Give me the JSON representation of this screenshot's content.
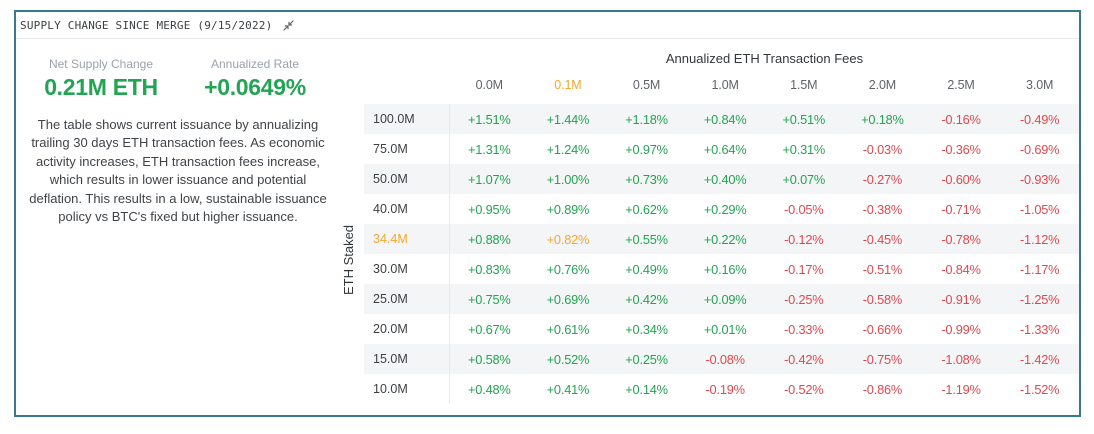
{
  "header": {
    "title": "SUPPLY CHANGE SINCE MERGE (9/15/2022)"
  },
  "stats": [
    {
      "label": "Net Supply Change",
      "value": "0.21M ETH"
    },
    {
      "label": "Annualized Rate",
      "value": "+0.0649%"
    }
  ],
  "description": "The table shows current issuance by annualizing trailing 30 days ETH transaction fees. As economic activity increases, ETH transaction fees increase, which results in lower issuance and potential deflation. This results in a low, sustainable issuance policy vs BTC's fixed but higher issuance.",
  "colors": {
    "positive": "#23a354",
    "negative": "#e0484f",
    "highlight": "#f2a72e",
    "card_border": "#37798e"
  },
  "table": {
    "title": "Annualized ETH Transaction Fees",
    "y_axis_label": "ETH Staked",
    "columns": [
      "0.0M",
      "0.1M",
      "0.5M",
      "1.0M",
      "1.5M",
      "2.0M",
      "2.5M",
      "3.0M"
    ],
    "highlight_column_index": 1,
    "highlight_row_index": 4,
    "rows": [
      {
        "staked": "100.0M",
        "values": [
          "+1.51%",
          "+1.44%",
          "+1.18%",
          "+0.84%",
          "+0.51%",
          "+0.18%",
          "-0.16%",
          "-0.49%"
        ]
      },
      {
        "staked": "75.0M",
        "values": [
          "+1.31%",
          "+1.24%",
          "+0.97%",
          "+0.64%",
          "+0.31%",
          "-0.03%",
          "-0.36%",
          "-0.69%"
        ]
      },
      {
        "staked": "50.0M",
        "values": [
          "+1.07%",
          "+1.00%",
          "+0.73%",
          "+0.40%",
          "+0.07%",
          "-0.27%",
          "-0.60%",
          "-0.93%"
        ]
      },
      {
        "staked": "40.0M",
        "values": [
          "+0.95%",
          "+0.89%",
          "+0.62%",
          "+0.29%",
          "-0.05%",
          "-0.38%",
          "-0.71%",
          "-1.05%"
        ]
      },
      {
        "staked": "34.4M",
        "values": [
          "+0.88%",
          "+0.82%",
          "+0.55%",
          "+0.22%",
          "-0.12%",
          "-0.45%",
          "-0.78%",
          "-1.12%"
        ]
      },
      {
        "staked": "30.0M",
        "values": [
          "+0.83%",
          "+0.76%",
          "+0.49%",
          "+0.16%",
          "-0.17%",
          "-0.51%",
          "-0.84%",
          "-1.17%"
        ]
      },
      {
        "staked": "25.0M",
        "values": [
          "+0.75%",
          "+0.69%",
          "+0.42%",
          "+0.09%",
          "-0.25%",
          "-0.58%",
          "-0.91%",
          "-1.25%"
        ]
      },
      {
        "staked": "20.0M",
        "values": [
          "+0.67%",
          "+0.61%",
          "+0.34%",
          "+0.01%",
          "-0.33%",
          "-0.66%",
          "-0.99%",
          "-1.33%"
        ]
      },
      {
        "staked": "15.0M",
        "values": [
          "+0.58%",
          "+0.52%",
          "+0.25%",
          "-0.08%",
          "-0.42%",
          "-0.75%",
          "-1.08%",
          "-1.42%"
        ]
      },
      {
        "staked": "10.0M",
        "values": [
          "+0.48%",
          "+0.41%",
          "+0.14%",
          "-0.19%",
          "-0.52%",
          "-0.86%",
          "-1.19%",
          "-1.52%"
        ]
      }
    ]
  }
}
